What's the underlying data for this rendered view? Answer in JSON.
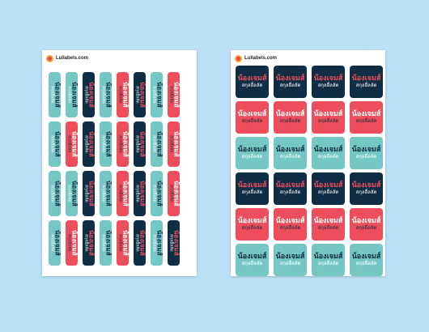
{
  "brand": "Lullabels.com",
  "label_text": {
    "line1": "น้องเจมส์",
    "line2": "สกุลอื่ลลัด"
  },
  "colors": {
    "background": "#b9e0f4",
    "navy": "#0f2d44",
    "coral": "#ee4e5c",
    "teal": "#75c7c3"
  },
  "sheet_left": {
    "rows": [
      [
        "teal",
        "teal",
        "navy",
        "teal",
        "coral",
        "navy",
        "teal",
        "coral"
      ],
      [
        "teal",
        "coral",
        "navy",
        "teal",
        "coral",
        "navy",
        "teal",
        "coral"
      ],
      [
        "teal",
        "teal",
        "navy",
        "teal",
        "coral",
        "navy",
        "teal",
        "coral"
      ],
      [
        "teal",
        "coral",
        "navy",
        "teal",
        "coral",
        "navy",
        "teal",
        "navy"
      ]
    ]
  },
  "sheet_right": {
    "rows": [
      [
        "navy",
        "navy",
        "navy",
        "navy"
      ],
      [
        "coral",
        "coral",
        "coral",
        "coral"
      ],
      [
        "teal",
        "teal",
        "teal",
        "teal"
      ],
      [
        "navy",
        "navy",
        "navy",
        "navy"
      ],
      [
        "coral",
        "coral",
        "coral",
        "coral"
      ],
      [
        "teal",
        "teal",
        "teal",
        "teal"
      ]
    ]
  }
}
